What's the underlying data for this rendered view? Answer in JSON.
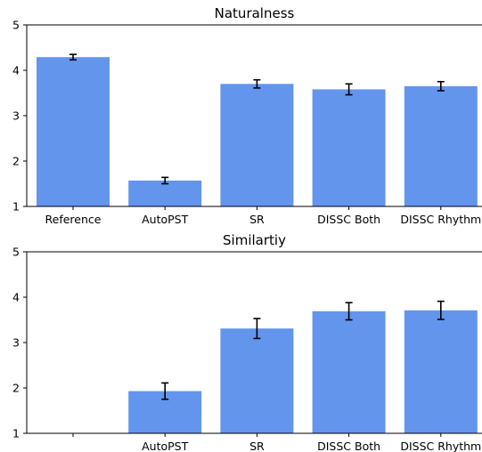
{
  "chart_data": [
    {
      "type": "bar",
      "title": "Naturalness",
      "categories": [
        "Reference",
        "AutoPST",
        "SR",
        "DISSC Both",
        "DISSC Rhythm"
      ],
      "values": [
        4.29,
        1.57,
        3.7,
        3.58,
        3.65
      ],
      "errors": [
        0.06,
        0.07,
        0.09,
        0.12,
        0.1
      ],
      "ylim": [
        1,
        5
      ],
      "yticks": [
        "1",
        "2",
        "3",
        "4",
        "5"
      ],
      "bar_color": "#6495ed",
      "grid": false
    },
    {
      "type": "bar",
      "title": "Similartiy",
      "categories": [
        "",
        "AutoPST",
        "SR",
        "DISSC Both",
        "DISSC Rhythm"
      ],
      "values": [
        null,
        1.93,
        3.31,
        3.69,
        3.71
      ],
      "errors": [
        null,
        0.18,
        0.22,
        0.19,
        0.2
      ],
      "ylim": [
        1,
        5
      ],
      "yticks": [
        "1",
        "2",
        "3",
        "4",
        "5"
      ],
      "bar_color": "#6495ed",
      "grid": false
    }
  ]
}
